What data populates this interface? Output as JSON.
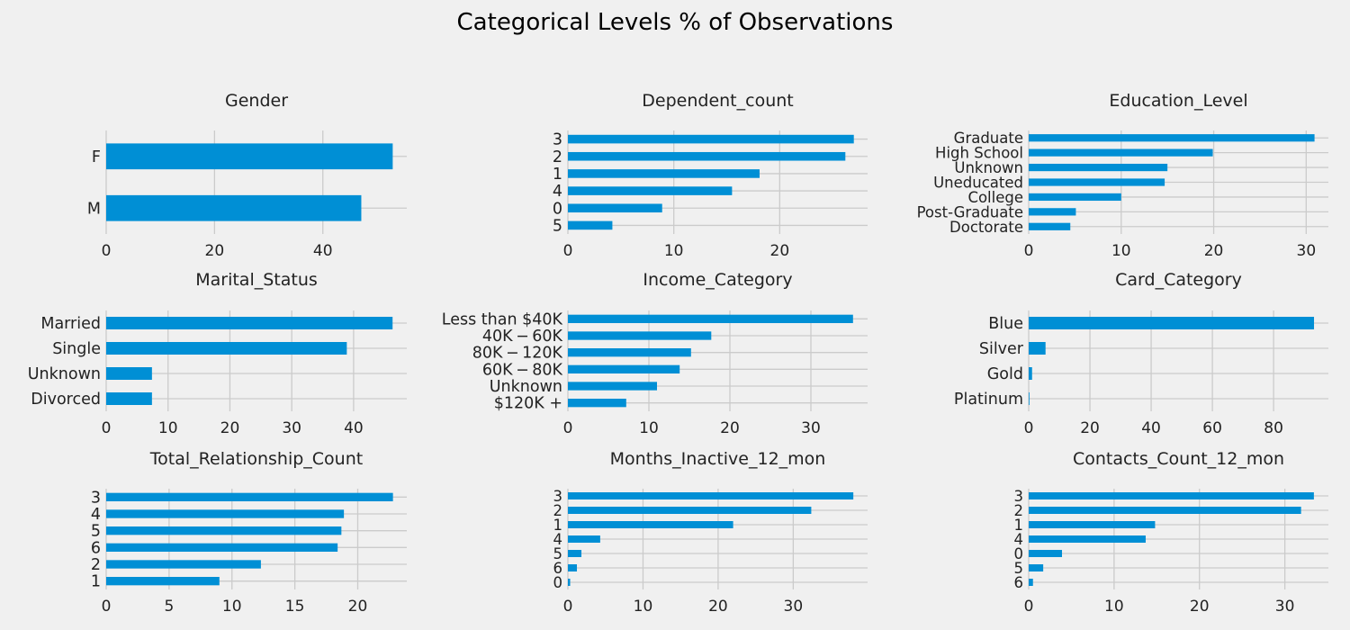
{
  "figure": {
    "title": "Categorical Levels % of Observations"
  },
  "colors": {
    "bar": "#008fd5",
    "grid": "#cbcbcb",
    "background": "#f0f0f0",
    "text": "#222222"
  },
  "chart_data": [
    {
      "type": "bar",
      "orientation": "horizontal",
      "title": "Gender",
      "categories": [
        "F",
        "M"
      ],
      "values": [
        52.9,
        47.1
      ],
      "xlim": [
        0,
        55.5
      ],
      "xticks": [
        0,
        20,
        40
      ],
      "grid": true
    },
    {
      "type": "bar",
      "orientation": "horizontal",
      "title": "Dependent_count",
      "categories": [
        "3",
        "2",
        "1",
        "4",
        "0",
        "5"
      ],
      "values": [
        27.0,
        26.2,
        18.1,
        15.5,
        8.9,
        4.2
      ],
      "xlim": [
        0,
        28.3
      ],
      "xticks": [
        0,
        10,
        20
      ],
      "grid": true
    },
    {
      "type": "bar",
      "orientation": "horizontal",
      "title": "Education_Level",
      "categories": [
        "Graduate",
        "High School",
        "Unknown",
        "Uneducated",
        "College",
        "Post-Graduate",
        "Doctorate"
      ],
      "values": [
        30.9,
        19.9,
        15.0,
        14.7,
        10.0,
        5.1,
        4.5
      ],
      "xlim": [
        0,
        32.4
      ],
      "xticks": [
        0,
        10,
        20,
        30
      ],
      "grid": true
    },
    {
      "type": "bar",
      "orientation": "horizontal",
      "title": "Marital_Status",
      "categories": [
        "Married",
        "Single",
        "Unknown",
        "Divorced"
      ],
      "values": [
        46.3,
        38.9,
        7.4,
        7.4
      ],
      "xlim": [
        0,
        48.6
      ],
      "xticks": [
        0,
        10,
        20,
        30,
        40
      ],
      "grid": true
    },
    {
      "type": "bar",
      "orientation": "horizontal",
      "title": "Income_Category",
      "categories": [
        "Less than $40K",
        "$40K - $60K",
        "$80K - $120K",
        "$60K - $80K",
        "Unknown",
        "$120K +"
      ],
      "display_labels": [
        "Less than $40K",
        "40K − 60K",
        "80K − 120K",
        "60K − 80K",
        "Unknown",
        "$120K +"
      ],
      "values": [
        35.2,
        17.7,
        15.2,
        13.8,
        11.0,
        7.2
      ],
      "xlim": [
        0,
        37.0
      ],
      "xticks": [
        0,
        10,
        20,
        30
      ],
      "grid": true
    },
    {
      "type": "bar",
      "orientation": "horizontal",
      "title": "Card_Category",
      "categories": [
        "Blue",
        "Silver",
        "Gold",
        "Platinum"
      ],
      "values": [
        93.2,
        5.5,
        1.1,
        0.2
      ],
      "xlim": [
        0,
        97.9
      ],
      "xticks": [
        0,
        20,
        40,
        60,
        80
      ],
      "grid": true
    },
    {
      "type": "bar",
      "orientation": "horizontal",
      "title": "Total_Relationship_Count",
      "categories": [
        "3",
        "4",
        "5",
        "6",
        "2",
        "1"
      ],
      "values": [
        22.8,
        18.9,
        18.7,
        18.4,
        12.3,
        9.0
      ],
      "xlim": [
        0,
        23.9
      ],
      "xticks": [
        0,
        5,
        10,
        15,
        20
      ],
      "grid": true
    },
    {
      "type": "bar",
      "orientation": "horizontal",
      "title": "Months_Inactive_12_mon",
      "categories": [
        "3",
        "2",
        "1",
        "4",
        "5",
        "6",
        "0"
      ],
      "values": [
        38.0,
        32.4,
        22.0,
        4.3,
        1.8,
        1.2,
        0.3
      ],
      "xlim": [
        0,
        39.9
      ],
      "xticks": [
        0,
        10,
        20,
        30
      ],
      "grid": true
    },
    {
      "type": "bar",
      "orientation": "horizontal",
      "title": "Contacts_Count_12_mon",
      "categories": [
        "3",
        "2",
        "1",
        "4",
        "0",
        "5",
        "6"
      ],
      "values": [
        33.4,
        31.9,
        14.8,
        13.7,
        3.9,
        1.7,
        0.5
      ],
      "xlim": [
        0,
        35.1
      ],
      "xticks": [
        0,
        10,
        20,
        30
      ],
      "grid": true
    }
  ]
}
